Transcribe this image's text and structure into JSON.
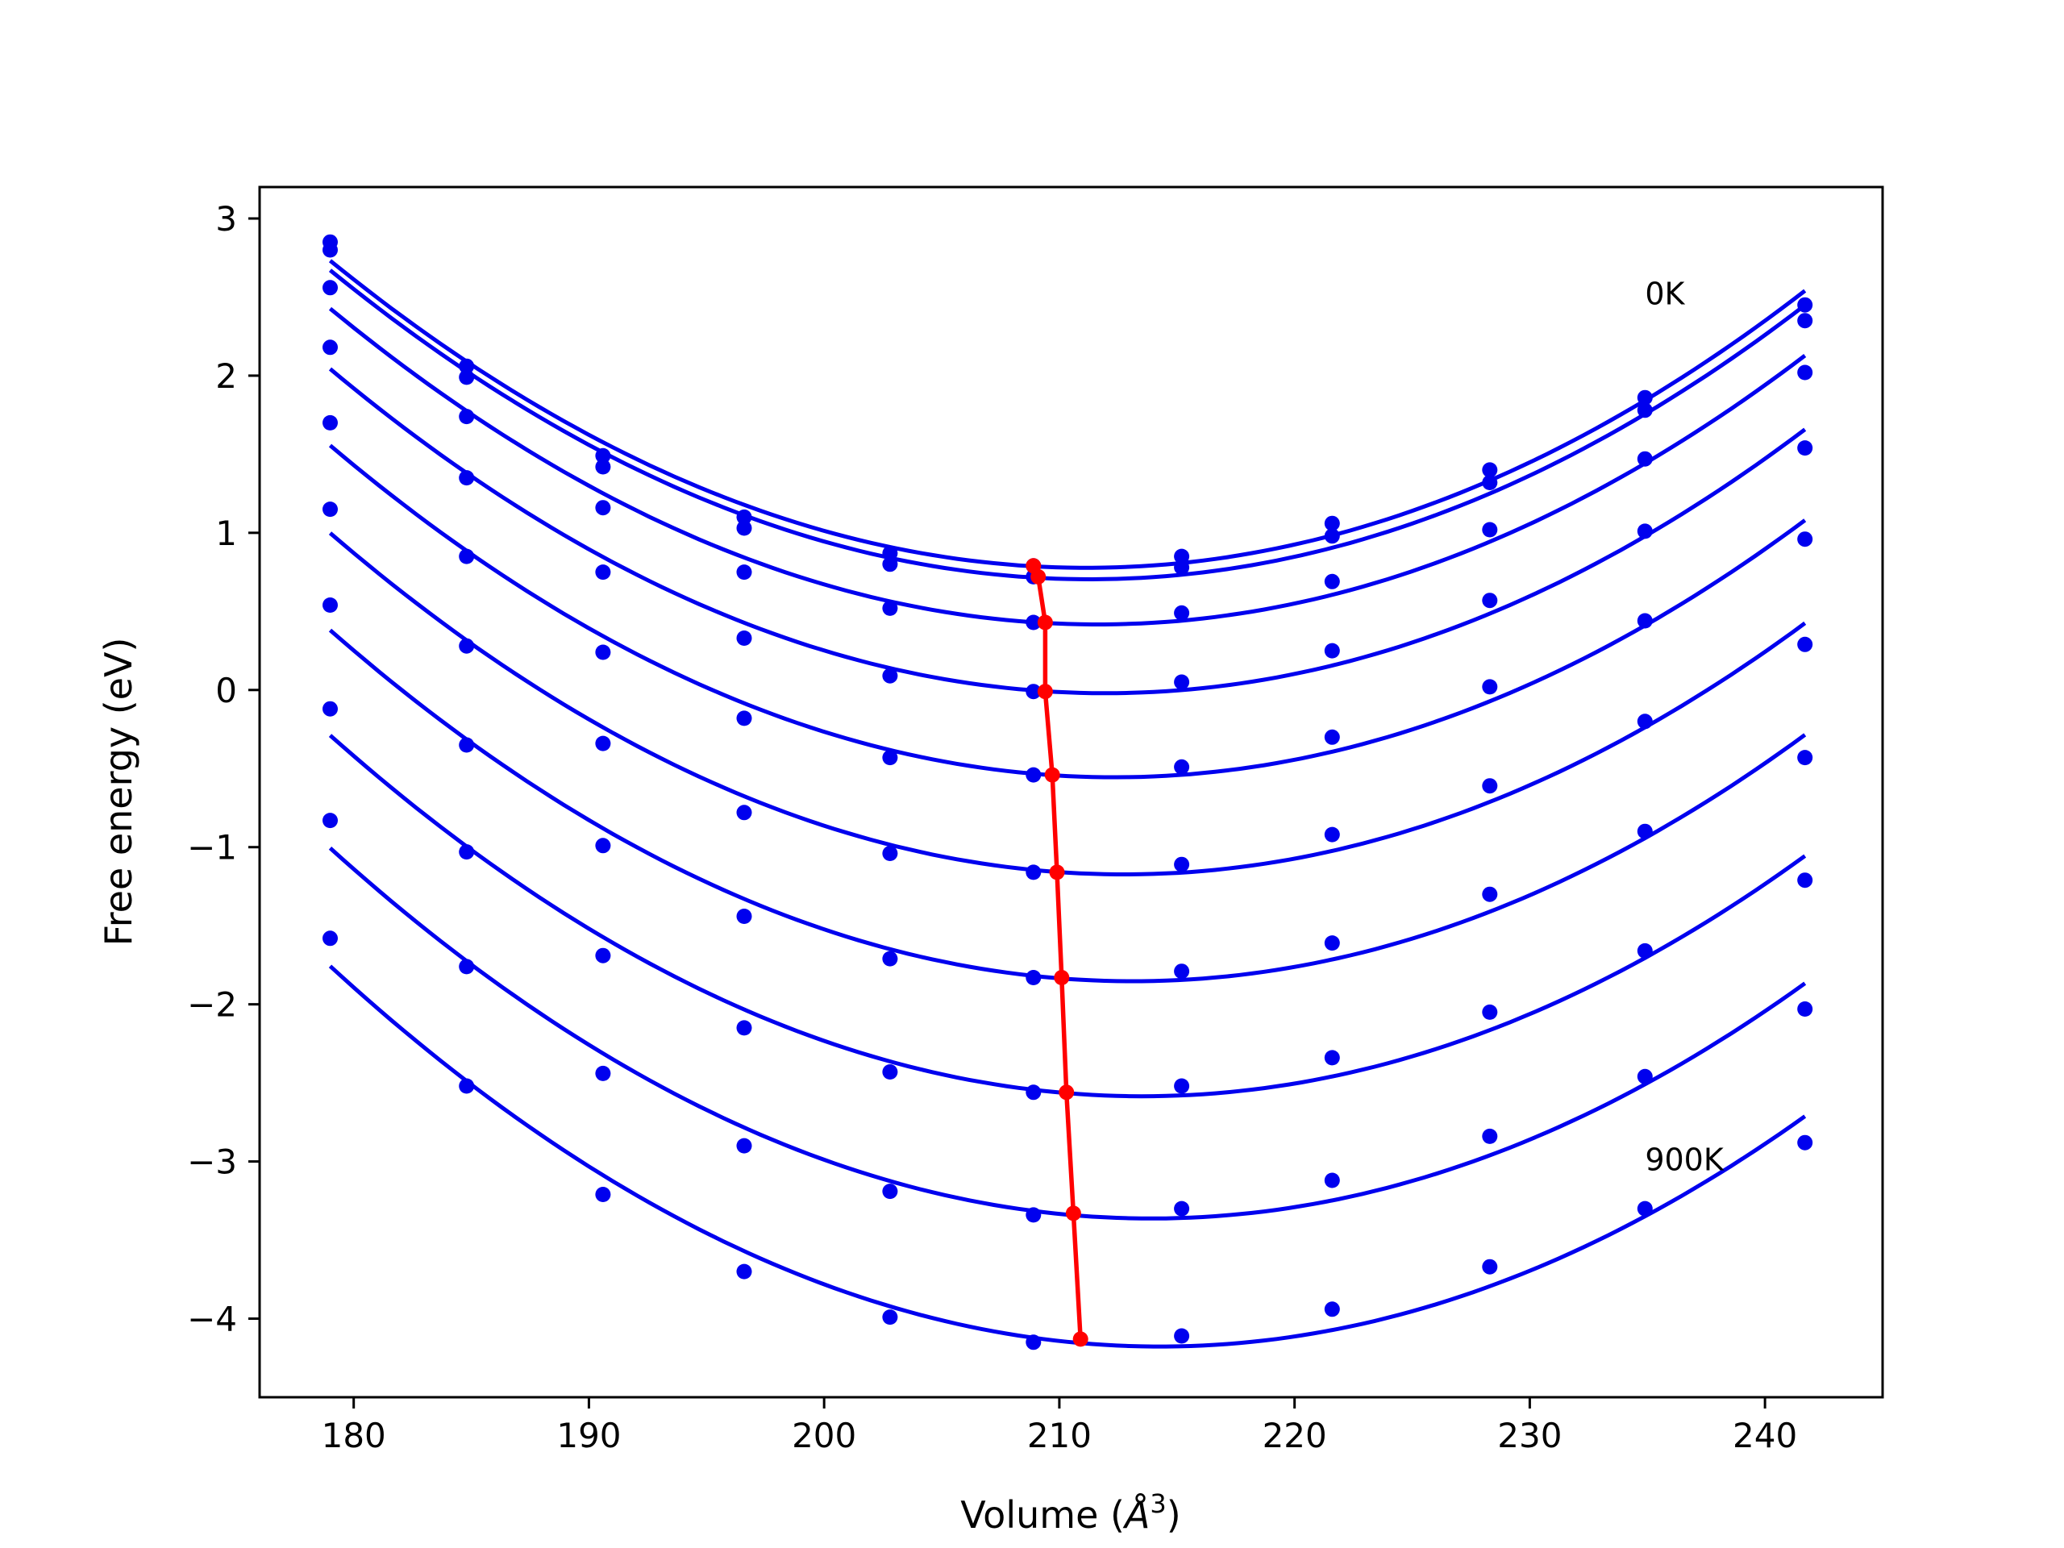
{
  "chart_data": {
    "type": "line",
    "title": "",
    "xlabel": "Volume (",
    "xlabel_symbol": "Å",
    "xlabel_exp": "3",
    "xlabel_close": ")",
    "ylabel": "Free energy (eV)",
    "xlim": [
      176,
      245
    ],
    "ylim": [
      -4.5,
      3.2
    ],
    "xticks": [
      180,
      190,
      200,
      210,
      220,
      230,
      240
    ],
    "yticks": [
      -4,
      -3,
      -2,
      -1,
      0,
      1,
      2,
      3
    ],
    "xtick_labels": [
      "180",
      "190",
      "200",
      "210",
      "220",
      "230",
      "240"
    ],
    "ytick_labels": [
      "−4",
      "−3",
      "−2",
      "−1",
      "0",
      "1",
      "2",
      "3"
    ],
    "grid": false,
    "x": [
      179.0,
      184.8,
      190.6,
      196.6,
      202.8,
      208.9,
      215.2,
      221.6,
      228.3,
      234.9,
      241.7
    ],
    "series": [
      {
        "values": [
          2.85,
          2.06,
          1.49,
          1.1,
          0.87,
          0.79,
          0.85,
          1.06,
          1.4,
          1.86,
          2.45
        ]
      },
      {
        "values": [
          2.8,
          1.99,
          1.42,
          1.03,
          0.8,
          0.72,
          0.78,
          0.98,
          1.32,
          1.78,
          2.35
        ]
      },
      {
        "values": [
          2.56,
          1.74,
          1.16,
          0.75,
          0.52,
          0.43,
          0.49,
          0.69,
          1.02,
          1.47,
          2.02
        ]
      },
      {
        "values": [
          2.18,
          1.35,
          0.75,
          0.33,
          0.09,
          -0.01,
          0.05,
          0.25,
          0.57,
          1.01,
          1.54
        ]
      },
      {
        "values": [
          1.7,
          0.85,
          0.24,
          -0.18,
          -0.43,
          -0.54,
          -0.49,
          -0.3,
          0.02,
          0.44,
          0.96
        ]
      },
      {
        "values": [
          1.15,
          0.28,
          -0.34,
          -0.78,
          -1.04,
          -1.16,
          -1.11,
          -0.92,
          -0.61,
          -0.2,
          0.29
        ]
      },
      {
        "values": [
          0.54,
          -0.35,
          -0.99,
          -1.44,
          -1.71,
          -1.83,
          -1.79,
          -1.61,
          -1.3,
          -0.9,
          -0.43
        ]
      },
      {
        "values": [
          -0.12,
          -1.03,
          -1.69,
          -2.15,
          -2.43,
          -2.56,
          -2.52,
          -2.34,
          -2.05,
          -1.66,
          -1.21
        ]
      },
      {
        "values": [
          -0.83,
          -1.76,
          -2.44,
          -2.9,
          -3.19,
          -3.34,
          -3.3,
          -3.12,
          -2.84,
          -2.46,
          -2.03
        ]
      },
      {
        "values": [
          -1.58,
          -2.52,
          -3.21,
          -3.7,
          -3.99,
          -4.15,
          -4.11,
          -3.94,
          -3.67,
          -3.3,
          -2.88
        ]
      }
    ],
    "minima": {
      "x": [
        208.9,
        209.1,
        209.4,
        209.4,
        209.7,
        209.9,
        210.1,
        210.3,
        210.6,
        210.9
      ],
      "y": [
        0.79,
        0.72,
        0.43,
        -0.01,
        -0.54,
        -1.16,
        -1.83,
        -2.56,
        -3.33,
        -4.13
      ]
    },
    "annotations": [
      {
        "text": "0K",
        "x": 234.9,
        "y": 2.52
      },
      {
        "text": "900K",
        "x": 234.9,
        "y": -2.99
      }
    ],
    "colors": {
      "curves": "#0000ee",
      "minima": "#ff0000",
      "axes": "#000000"
    }
  }
}
